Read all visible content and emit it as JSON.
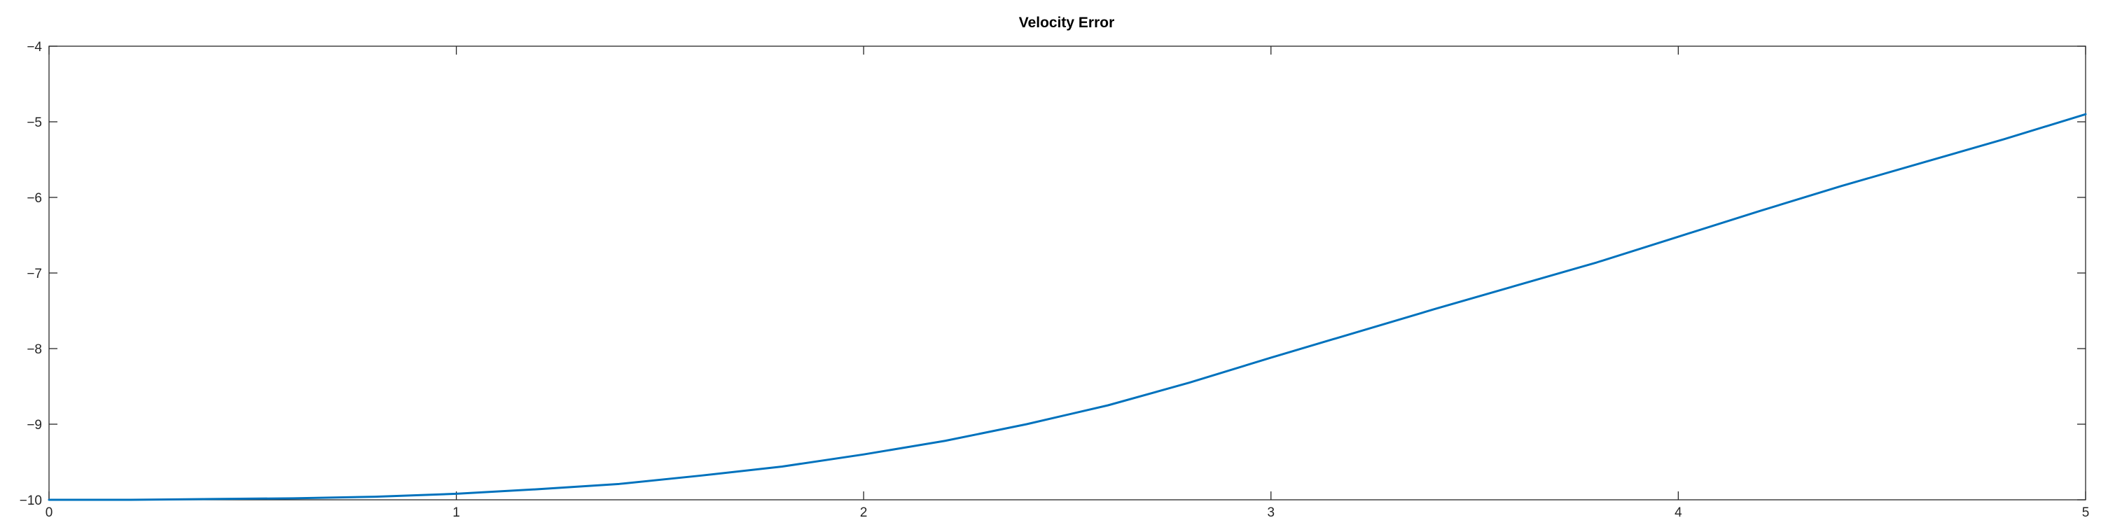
{
  "chart_data": {
    "type": "line",
    "title": "Velocity Error",
    "xlabel": "",
    "ylabel": "",
    "xlim": [
      0,
      5
    ],
    "ylim": [
      -10,
      -4
    ],
    "x_ticks": [
      "0",
      "1",
      "2",
      "3",
      "4",
      "5"
    ],
    "y_ticks": [
      "−10",
      "−9",
      "−8",
      "−7",
      "−6",
      "−5",
      "−4"
    ],
    "grid": false,
    "line_color": "#0072BD",
    "series": [
      {
        "x": [
          0,
          0.2,
          0.4,
          0.6,
          0.8,
          1.0,
          1.2,
          1.4,
          1.6,
          1.8,
          2.0,
          2.2,
          2.4,
          2.6,
          2.8,
          3.0,
          3.2,
          3.4,
          3.6,
          3.8,
          4.0,
          4.2,
          4.4,
          4.6,
          4.8,
          5.0
        ],
        "y": [
          -10.0,
          -10.0,
          -9.99,
          -9.98,
          -9.96,
          -9.92,
          -9.86,
          -9.79,
          -9.68,
          -9.56,
          -9.4,
          -9.22,
          -9.0,
          -8.75,
          -8.45,
          -8.12,
          -7.8,
          -7.48,
          -7.17,
          -6.86,
          -6.52,
          -6.18,
          -5.85,
          -5.54,
          -5.23,
          -4.9
        ]
      }
    ]
  }
}
